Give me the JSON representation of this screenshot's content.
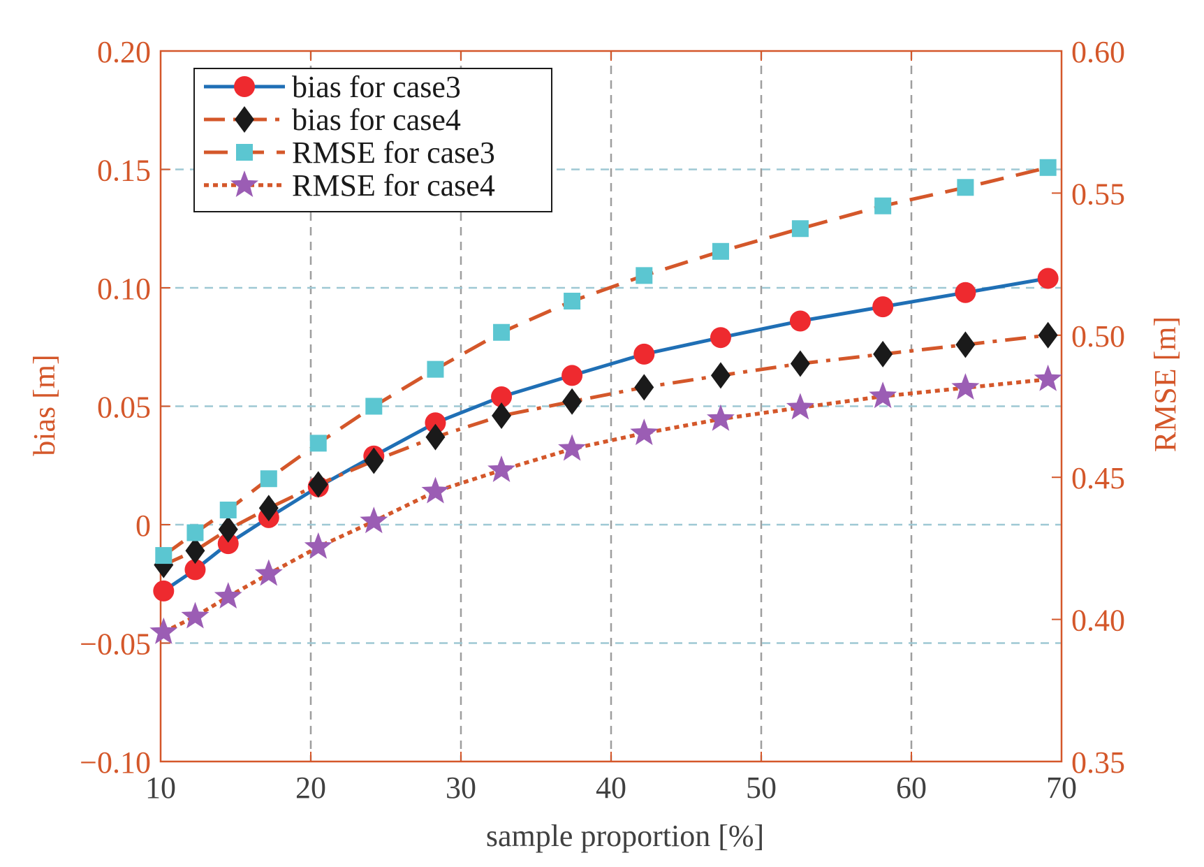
{
  "chart_data": {
    "type": "line",
    "title": "",
    "xlabel": "sample proportion [%]",
    "ylabel_left": "bias [m]",
    "ylabel_right": "RMSE [m]",
    "xlim": [
      10,
      70
    ],
    "ylim_left": [
      -0.1,
      0.2
    ],
    "ylim_right": [
      0.35,
      0.6
    ],
    "x_ticks": [
      10,
      20,
      30,
      40,
      50,
      60,
      70
    ],
    "x_tick_labels": [
      "10",
      "20",
      "30",
      "40",
      "50",
      "60",
      "70"
    ],
    "y_left_ticks": [
      -0.1,
      -0.05,
      0,
      0.05,
      0.1,
      0.15,
      0.2
    ],
    "y_left_tick_labels": [
      "−0.10",
      "−0.05",
      "0",
      "0.05",
      "0.10",
      "0.15",
      "0.20"
    ],
    "y_right_ticks": [
      0.35,
      0.4,
      0.45,
      0.5,
      0.55,
      0.6
    ],
    "y_right_tick_labels": [
      "0.35",
      "0.40",
      "0.45",
      "0.50",
      "0.55",
      "0.60"
    ],
    "grid": true,
    "legend_position": "top-left",
    "x": [
      10.2,
      12.3,
      14.5,
      17.2,
      20.5,
      24.2,
      28.3,
      32.7,
      37.4,
      42.2,
      47.3,
      52.6,
      58.1,
      63.6,
      69.1
    ],
    "series": [
      {
        "name": "bias for case3",
        "axis": "left",
        "line_style": "solid",
        "line_color": "#1f6fb5",
        "marker": "circle",
        "marker_color": "#ee2a2f",
        "values": [
          -0.028,
          -0.019,
          -0.008,
          0.003,
          0.016,
          0.029,
          0.043,
          0.054,
          0.063,
          0.072,
          0.079,
          0.086,
          0.092,
          0.098,
          0.104
        ]
      },
      {
        "name": "bias for case4",
        "axis": "left",
        "line_style": "dashdot",
        "line_color": "#d4572a",
        "marker": "diamond",
        "marker_color": "#1a1a1a",
        "values": [
          -0.017,
          -0.011,
          -0.002,
          0.007,
          0.017,
          0.027,
          0.037,
          0.046,
          0.052,
          0.058,
          0.063,
          0.068,
          0.072,
          0.076,
          0.08
        ]
      },
      {
        "name": "RMSE for case3",
        "axis": "right",
        "line_style": "dashed",
        "line_color": "#d4572a",
        "marker": "square",
        "marker_color": "#5bc6d1",
        "values": [
          0.4225,
          0.4305,
          0.4385,
          0.4495,
          0.462,
          0.475,
          0.488,
          0.501,
          0.512,
          0.521,
          0.5295,
          0.5375,
          0.5455,
          0.552,
          0.559
        ]
      },
      {
        "name": "RMSE for case4",
        "axis": "right",
        "line_style": "dotted",
        "line_color": "#d4572a",
        "marker": "star",
        "marker_color": "#9b5db4",
        "values": [
          0.3955,
          0.401,
          0.408,
          0.416,
          0.4255,
          0.4345,
          0.445,
          0.4525,
          0.46,
          0.4655,
          0.4705,
          0.4745,
          0.4785,
          0.4815,
          0.4845
        ]
      }
    ]
  },
  "colors": {
    "axis": "#d4572a",
    "x_axis": "#404040",
    "grid_vertical": "#9e9e9e",
    "grid_horizontal": "#9ec8d4"
  }
}
